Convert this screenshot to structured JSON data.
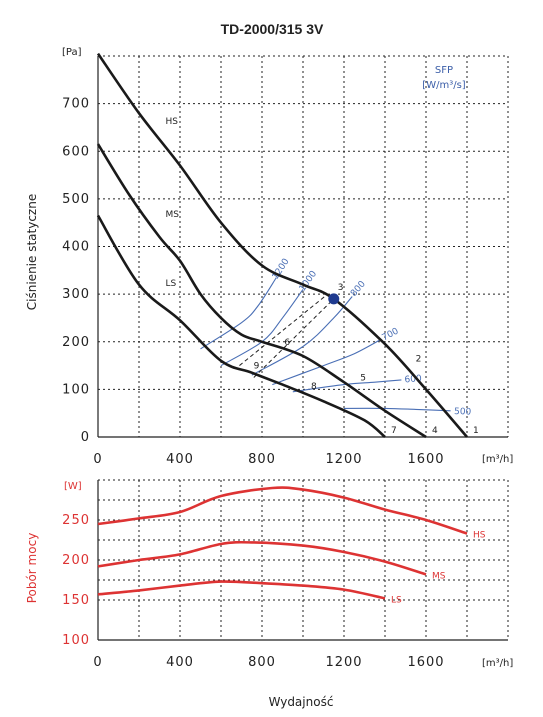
{
  "chart_data": [
    {
      "type": "line",
      "title": "TD-2000/315 3V",
      "ylabel": "Ciśnienie statyczne",
      "y_unit": "[Pa]",
      "x_unit": "[m³/h]",
      "xlim": [
        0,
        2000
      ],
      "ylim": [
        0,
        800
      ],
      "x_ticks": [
        "0",
        "400",
        "800",
        "1200",
        "1600"
      ],
      "y_ticks": [
        "0",
        "100",
        "200",
        "300",
        "400",
        "500",
        "600",
        "700"
      ],
      "grid": true,
      "series": [
        {
          "name": "HS",
          "points": [
            [
              0,
              805
            ],
            [
              200,
              680
            ],
            [
              400,
              570
            ],
            [
              600,
              450
            ],
            [
              800,
              360
            ],
            [
              1000,
              320
            ],
            [
              1150,
              290
            ],
            [
              1400,
              195
            ],
            [
              1600,
              100
            ],
            [
              1800,
              0
            ]
          ]
        },
        {
          "name": "MS",
          "points": [
            [
              0,
              615
            ],
            [
              150,
              510
            ],
            [
              300,
              420
            ],
            [
              400,
              370
            ],
            [
              500,
              300
            ],
            [
              600,
              250
            ],
            [
              700,
              215
            ],
            [
              800,
              200
            ],
            [
              1000,
              170
            ],
            [
              1200,
              115
            ],
            [
              1400,
              55
            ],
            [
              1600,
              0
            ]
          ]
        },
        {
          "name": "LS",
          "points": [
            [
              0,
              465
            ],
            [
              200,
              320
            ],
            [
              400,
              245
            ],
            [
              600,
              160
            ],
            [
              750,
              135
            ],
            [
              900,
              110
            ],
            [
              1100,
              75
            ],
            [
              1300,
              35
            ],
            [
              1400,
              0
            ]
          ]
        }
      ],
      "sfp_title": "SFP",
      "sfp_unit": "[W/m³/s]",
      "sfp_curves": [
        {
          "label": "1200",
          "points": [
            [
              500,
              185
            ],
            [
              700,
              240
            ],
            [
              780,
              275
            ],
            [
              870,
              335
            ]
          ]
        },
        {
          "label": "1000",
          "points": [
            [
              600,
              150
            ],
            [
              800,
              200
            ],
            [
              900,
              250
            ],
            [
              1000,
              310
            ]
          ]
        },
        {
          "label": "800",
          "points": [
            [
              750,
              130
            ],
            [
              1000,
              190
            ],
            [
              1150,
              250
            ],
            [
              1240,
              295
            ]
          ]
        },
        {
          "label": "700",
          "points": [
            [
              850,
              110
            ],
            [
              1100,
              150
            ],
            [
              1250,
              175
            ],
            [
              1380,
              205
            ]
          ]
        },
        {
          "label": "600",
          "points": [
            [
              950,
              95
            ],
            [
              1200,
              110
            ],
            [
              1350,
              115
            ],
            [
              1480,
              120
            ]
          ]
        },
        {
          "label": "500",
          "points": [
            [
              1200,
              60
            ],
            [
              1400,
              60
            ],
            [
              1550,
              58
            ],
            [
              1720,
              55
            ]
          ]
        }
      ],
      "operating_point": {
        "x": 1150,
        "y": 290
      },
      "point_labels": [
        {
          "label": "1",
          "x": 1800,
          "y": 0
        },
        {
          "label": "2",
          "x": 1520,
          "y": 150
        },
        {
          "label": "3",
          "x": 1140,
          "y": 300
        },
        {
          "label": "4",
          "x": 1600,
          "y": 0
        },
        {
          "label": "5",
          "x": 1250,
          "y": 110
        },
        {
          "label": "6",
          "x": 880,
          "y": 185
        },
        {
          "label": "7",
          "x": 1400,
          "y": 0
        },
        {
          "label": "8",
          "x": 1010,
          "y": 92
        },
        {
          "label": "9",
          "x": 730,
          "y": 135
        }
      ]
    },
    {
      "type": "line",
      "ylabel": "Pobór mocy",
      "y_unit": "[W]",
      "x_unit": "[m³/h]",
      "xlim": [
        0,
        2000
      ],
      "ylim": [
        100,
        300
      ],
      "x_ticks": [
        "0",
        "400",
        "800",
        "1200",
        "1600"
      ],
      "y_ticks": [
        "100",
        "150",
        "200",
        "250"
      ],
      "grid": true,
      "xlabel": "Wydajność",
      "color": "#dd3333",
      "series": [
        {
          "name": "HS",
          "points": [
            [
              0,
              245
            ],
            [
              200,
              252
            ],
            [
              400,
              260
            ],
            [
              600,
              280
            ],
            [
              850,
              290
            ],
            [
              1000,
              288
            ],
            [
              1200,
              278
            ],
            [
              1400,
              263
            ],
            [
              1600,
              250
            ],
            [
              1800,
              233
            ]
          ]
        },
        {
          "name": "MS",
          "points": [
            [
              0,
              192
            ],
            [
              200,
              200
            ],
            [
              400,
              207
            ],
            [
              600,
              220
            ],
            [
              750,
              222
            ],
            [
              1000,
              218
            ],
            [
              1200,
              210
            ],
            [
              1400,
              198
            ],
            [
              1600,
              182
            ]
          ]
        },
        {
          "name": "LS",
          "points": [
            [
              0,
              157
            ],
            [
              200,
              162
            ],
            [
              400,
              168
            ],
            [
              600,
              173
            ],
            [
              800,
              171
            ],
            [
              1000,
              168
            ],
            [
              1200,
              163
            ],
            [
              1400,
              152
            ]
          ]
        }
      ]
    }
  ]
}
